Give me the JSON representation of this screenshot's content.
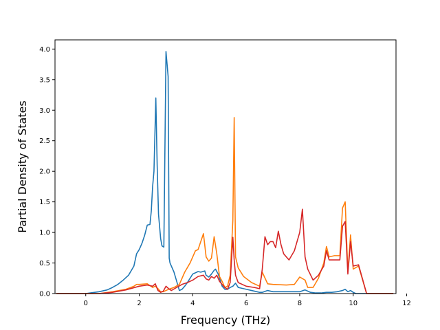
{
  "chart_data": {
    "type": "line",
    "title": "",
    "xlabel": "Frequency (THz)",
    "ylabel": "Partial Density of States",
    "xlim": [
      -1.15,
      11.6
    ],
    "ylim": [
      0.0,
      4.15
    ],
    "xticks": [
      0,
      2,
      4,
      6,
      8,
      10,
      12
    ],
    "yticks": [
      0.0,
      0.5,
      1.0,
      1.5,
      2.0,
      2.5,
      3.0,
      3.5,
      4.0
    ],
    "xtick_labels": [
      "0",
      "2",
      "4",
      "6",
      "8",
      "10",
      "12"
    ],
    "ytick_labels": [
      "0.0",
      "0.5",
      "1.0",
      "1.5",
      "2.0",
      "2.5",
      "3.0",
      "3.5",
      "4.0"
    ],
    "grid": false,
    "legend": "none",
    "series": [
      {
        "color": "#1f77b4",
        "x": [
          -1.1,
          0.0,
          0.5,
          0.8,
          1.0,
          1.2,
          1.4,
          1.6,
          1.8,
          1.9,
          2.0,
          2.1,
          2.2,
          2.3,
          2.4,
          2.45,
          2.5,
          2.55,
          2.62,
          2.67,
          2.72,
          2.8,
          2.85,
          2.92,
          3.0,
          3.08,
          3.12,
          3.15,
          3.2,
          3.3,
          3.5,
          3.6,
          3.7,
          3.8,
          4.0,
          4.2,
          4.3,
          4.45,
          4.5,
          4.6,
          4.7,
          4.8,
          4.85,
          4.95,
          5.1,
          5.2,
          5.3,
          5.4,
          5.5,
          5.6,
          5.7,
          6.0,
          6.3,
          6.5,
          6.6,
          6.8,
          7.0,
          7.5,
          8.0,
          8.2,
          8.4,
          8.6,
          8.8,
          9.0,
          9.2,
          9.4,
          9.6,
          9.7,
          9.8,
          9.9,
          10.0,
          10.1,
          10.5,
          11.5
        ],
        "y": [
          0.0,
          0.0,
          0.03,
          0.06,
          0.1,
          0.15,
          0.22,
          0.3,
          0.45,
          0.65,
          0.72,
          0.82,
          0.95,
          1.12,
          1.13,
          1.35,
          1.75,
          2.0,
          3.2,
          2.1,
          1.3,
          0.9,
          0.78,
          0.76,
          3.96,
          3.55,
          0.58,
          0.5,
          0.45,
          0.35,
          0.05,
          0.07,
          0.12,
          0.18,
          0.32,
          0.36,
          0.35,
          0.37,
          0.3,
          0.27,
          0.32,
          0.38,
          0.4,
          0.32,
          0.12,
          0.07,
          0.07,
          0.1,
          0.12,
          0.17,
          0.1,
          0.07,
          0.04,
          0.02,
          0.02,
          0.05,
          0.03,
          0.03,
          0.03,
          0.06,
          0.02,
          0.01,
          0.01,
          0.02,
          0.02,
          0.03,
          0.05,
          0.07,
          0.03,
          0.05,
          0.02,
          0.0,
          0.0,
          0.0
        ]
      },
      {
        "color": "#ff7f0e",
        "x": [
          -1.1,
          0.5,
          1.0,
          1.5,
          1.8,
          1.9,
          2.0,
          2.3,
          2.5,
          2.6,
          2.7,
          2.8,
          2.9,
          3.0,
          3.1,
          3.3,
          3.5,
          3.7,
          3.9,
          4.1,
          4.2,
          4.3,
          4.4,
          4.5,
          4.6,
          4.7,
          4.8,
          4.9,
          5.0,
          5.1,
          5.2,
          5.3,
          5.4,
          5.5,
          5.55,
          5.6,
          5.7,
          5.9,
          6.2,
          6.5,
          6.6,
          6.8,
          7.0,
          7.5,
          7.8,
          8.0,
          8.2,
          8.3,
          8.5,
          8.7,
          8.9,
          9.0,
          9.1,
          9.3,
          9.5,
          9.6,
          9.7,
          9.8,
          9.9,
          10.0,
          10.2,
          10.5,
          11.5
        ],
        "y": [
          0.0,
          0.0,
          0.03,
          0.07,
          0.12,
          0.15,
          0.15,
          0.16,
          0.1,
          0.12,
          0.08,
          0.03,
          0.03,
          0.05,
          0.07,
          0.1,
          0.15,
          0.35,
          0.5,
          0.7,
          0.72,
          0.85,
          0.98,
          0.6,
          0.53,
          0.58,
          0.93,
          0.65,
          0.28,
          0.2,
          0.1,
          0.12,
          0.3,
          1.2,
          2.88,
          0.6,
          0.42,
          0.28,
          0.18,
          0.12,
          0.35,
          0.16,
          0.15,
          0.14,
          0.15,
          0.27,
          0.22,
          0.1,
          0.1,
          0.25,
          0.5,
          0.77,
          0.6,
          0.62,
          0.62,
          1.4,
          1.5,
          0.35,
          0.96,
          0.4,
          0.45,
          0.0,
          0.0
        ]
      },
      {
        "color": "#d62728",
        "x": [
          -1.1,
          0.5,
          1.0,
          1.5,
          2.0,
          2.3,
          2.5,
          2.6,
          2.7,
          2.8,
          2.9,
          3.0,
          3.05,
          3.1,
          3.2,
          3.4,
          3.6,
          3.8,
          4.0,
          4.2,
          4.4,
          4.5,
          4.6,
          4.7,
          4.8,
          4.9,
          5.0,
          5.2,
          5.3,
          5.4,
          5.5,
          5.55,
          5.6,
          5.7,
          6.0,
          6.3,
          6.5,
          6.6,
          6.7,
          6.8,
          6.9,
          7.0,
          7.1,
          7.2,
          7.3,
          7.4,
          7.6,
          7.8,
          8.0,
          8.1,
          8.2,
          8.3,
          8.5,
          8.7,
          8.9,
          9.0,
          9.1,
          9.3,
          9.5,
          9.6,
          9.7,
          9.8,
          9.9,
          10.0,
          10.2,
          10.5,
          11.5
        ],
        "y": [
          0.0,
          0.0,
          0.02,
          0.06,
          0.12,
          0.14,
          0.12,
          0.16,
          0.05,
          0.02,
          0.04,
          0.12,
          0.1,
          0.08,
          0.05,
          0.1,
          0.15,
          0.18,
          0.22,
          0.28,
          0.3,
          0.24,
          0.22,
          0.28,
          0.25,
          0.3,
          0.2,
          0.1,
          0.07,
          0.18,
          0.92,
          0.55,
          0.3,
          0.18,
          0.12,
          0.1,
          0.08,
          0.4,
          0.93,
          0.8,
          0.85,
          0.85,
          0.75,
          1.02,
          0.8,
          0.65,
          0.55,
          0.7,
          1.0,
          1.38,
          0.6,
          0.4,
          0.22,
          0.3,
          0.45,
          0.7,
          0.55,
          0.55,
          0.55,
          1.1,
          1.18,
          0.32,
          0.85,
          0.45,
          0.47,
          0.0,
          0.0
        ]
      }
    ]
  }
}
